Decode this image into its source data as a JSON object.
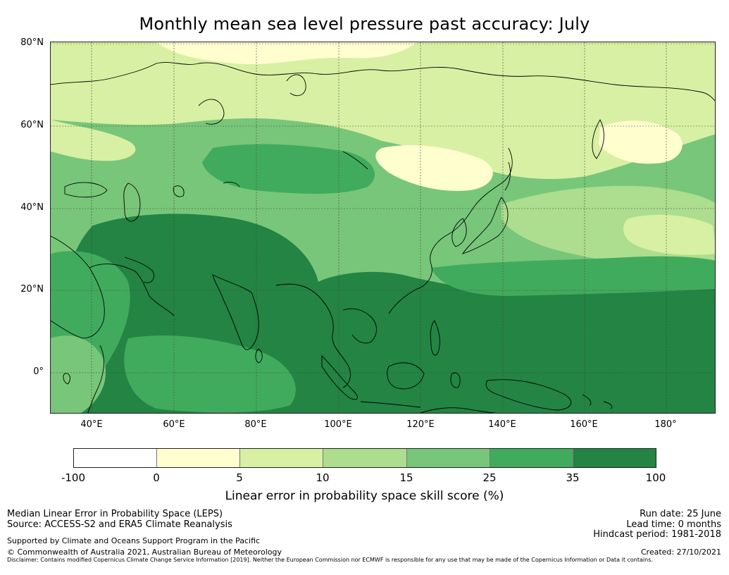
{
  "title": "Monthly mean sea level pressure past accuracy: July",
  "map": {
    "lat_labels": [
      "80°N",
      "60°N",
      "40°N",
      "20°N",
      "0°"
    ],
    "lon_labels": [
      "40°E",
      "60°E",
      "80°E",
      "100°E",
      "120°E",
      "140°E",
      "160°E",
      "180°"
    ],
    "colors": {
      "c0": "#ffffff",
      "c1": "#fffecf",
      "c2": "#d8f0a3",
      "c3": "#addd8e",
      "c4": "#78c679",
      "c5": "#41ab5d",
      "c6": "#238443",
      "coast": "#000000",
      "grid": "#444444"
    }
  },
  "colorbar": {
    "ticks": [
      "-100",
      "0",
      "5",
      "10",
      "15",
      "25",
      "35",
      "100"
    ],
    "colors": [
      "#ffffff",
      "#fffecf",
      "#d8f0a3",
      "#addd8e",
      "#78c679",
      "#41ab5d",
      "#238443"
    ],
    "label": "Linear error in probability space skill score (%)"
  },
  "footer": {
    "line1": "Median Linear Error in Probability Space (LEPS)",
    "line2": "Source: ACCESS-S2 and ERA5 Climate Reanalysis",
    "line3": "Supported by Climate and Oceans Support Program in the Pacific",
    "line4": "© Commonwealth of Australia 2021, Australian Bureau of Meteorology",
    "run_date": "Run date: 25 June",
    "lead_time": "Lead time: 0 months",
    "hindcast": "Hindcast period: 1981-2018",
    "created": "Created: 27/10/2021",
    "disclaimer": "Disclaimer: Contains modified Copernicus Climate Change Service Information [2019]. Neither the European Commission nor ECMWF is responsible for any use that may be made of the Copernicus Information or Data it contains."
  }
}
